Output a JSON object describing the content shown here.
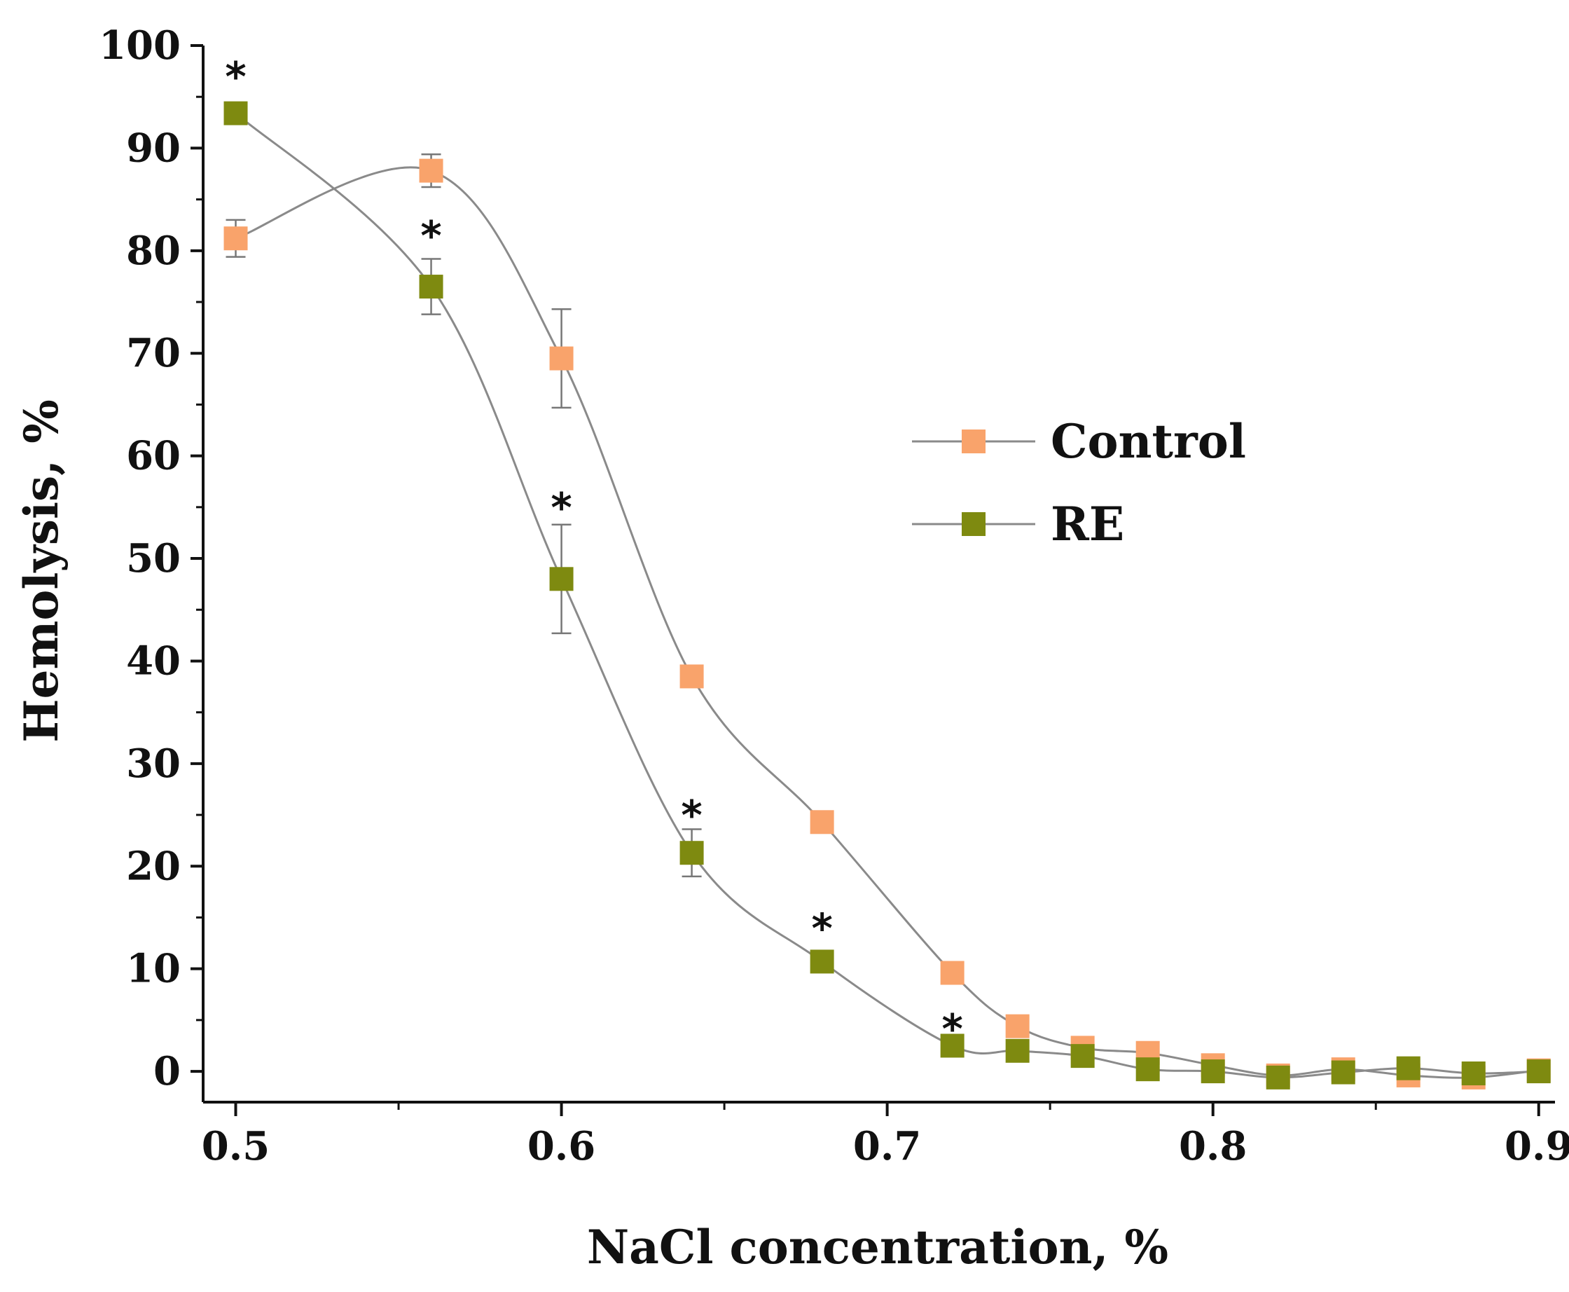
{
  "chart_data": {
    "type": "line",
    "title": "",
    "xlabel": "NaCl concentration, %",
    "ylabel": "Hemolysis, %",
    "xlim": [
      0.49,
      0.905
    ],
    "ylim": [
      -3,
      100
    ],
    "x_ticks": [
      0.5,
      0.6,
      0.7,
      0.8,
      0.9
    ],
    "x_tick_labels": [
      "0.5",
      "0.6",
      "0.7",
      "0.8",
      "0.9"
    ],
    "y_ticks": [
      0,
      10,
      20,
      30,
      40,
      50,
      60,
      70,
      80,
      90,
      100
    ],
    "y_tick_labels": [
      "0",
      "10",
      "20",
      "30",
      "40",
      "50",
      "60",
      "70",
      "80",
      "90",
      "100"
    ],
    "legend_position": "center-right",
    "series": [
      {
        "name": "Control",
        "color": "#F9A36B",
        "x": [
          0.5,
          0.56,
          0.6,
          0.64,
          0.68,
          0.72,
          0.74,
          0.76,
          0.78,
          0.8,
          0.82,
          0.84,
          0.86,
          0.88,
          0.9
        ],
        "values": [
          81.2,
          87.8,
          69.5,
          38.5,
          24.3,
          9.6,
          4.4,
          2.3,
          1.8,
          0.6,
          -0.4,
          0.2,
          -0.4,
          -0.6,
          0.1
        ],
        "error": [
          1.8,
          1.6,
          4.8,
          0.9,
          0.9,
          0.9,
          0.6,
          0.5,
          0.4,
          0.3,
          0.3,
          0.3,
          0.3,
          0.3,
          0.3
        ]
      },
      {
        "name": "RE",
        "color": "#7E8A10",
        "x": [
          0.5,
          0.56,
          0.6,
          0.64,
          0.68,
          0.72,
          0.74,
          0.76,
          0.78,
          0.8,
          0.82,
          0.84,
          0.86,
          0.88,
          0.9
        ],
        "values": [
          93.4,
          76.5,
          48.0,
          21.3,
          10.7,
          2.5,
          2.0,
          1.5,
          0.2,
          0.0,
          -0.6,
          -0.1,
          0.3,
          -0.2,
          0.0
        ],
        "error": [
          1.0,
          2.7,
          5.3,
          2.3,
          0.6,
          0.5,
          0.4,
          0.4,
          0.3,
          0.3,
          0.3,
          0.3,
          0.3,
          0.3,
          0.3
        ]
      }
    ],
    "annotations": [
      {
        "text": "*",
        "x": 0.5,
        "y": 97.5
      },
      {
        "text": "*",
        "x": 0.56,
        "y": 82.0
      },
      {
        "text": "*",
        "x": 0.6,
        "y": 55.5
      },
      {
        "text": "*",
        "x": 0.64,
        "y": 25.5
      },
      {
        "text": "*",
        "x": 0.68,
        "y": 14.5
      },
      {
        "text": "*",
        "x": 0.72,
        "y": 4.7
      }
    ]
  }
}
